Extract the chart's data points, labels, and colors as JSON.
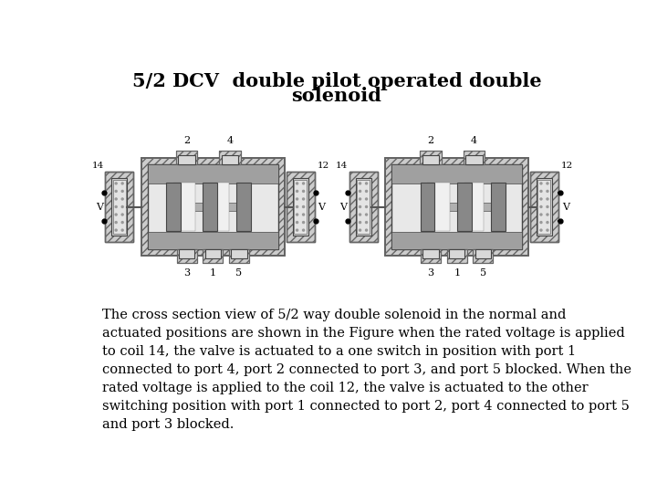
{
  "title_line1": "5/2 DCV  double pilot operated double",
  "title_line2": "solenoid",
  "title_fontsize": 15,
  "body_text": "The cross section view of 5/2 way double solenoid in the normal and\nactuated positions are shown in the Figure when the rated voltage is applied\nto coil 14, the valve is actuated to a one switch in position with port 1\nconnected to port 4, port 2 connected to port 3, and port 5 blocked. When the\nrated voltage is applied to the coil 12, the valve is actuated to the other\nswitching position with port 1 connected to port 2, port 4 connected to port 5\nand port 3 blocked.",
  "body_fontsize": 10.5,
  "bg_color": "#ffffff"
}
